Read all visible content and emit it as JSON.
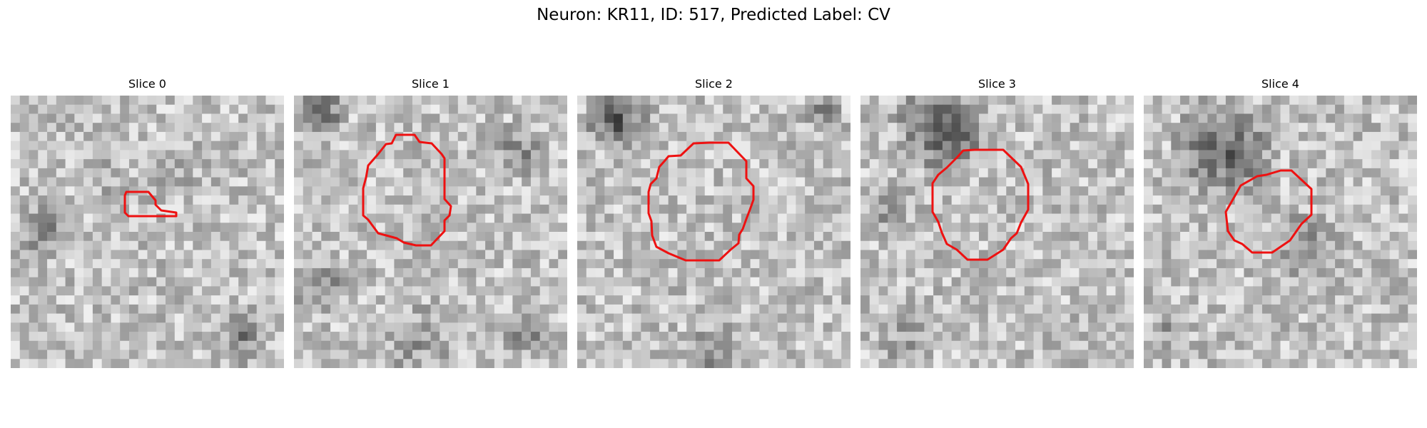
{
  "figure": {
    "title": "Neuron: KR11, ID: 517, Predicted Label: CV"
  },
  "panels": [
    {
      "title": "Slice 0"
    },
    {
      "title": "Slice 1"
    },
    {
      "title": "Slice 2"
    },
    {
      "title": "Slice 3"
    },
    {
      "title": "Slice 4"
    }
  ],
  "colors": {
    "contour": "#ee1111",
    "background": "#ffffff"
  }
}
